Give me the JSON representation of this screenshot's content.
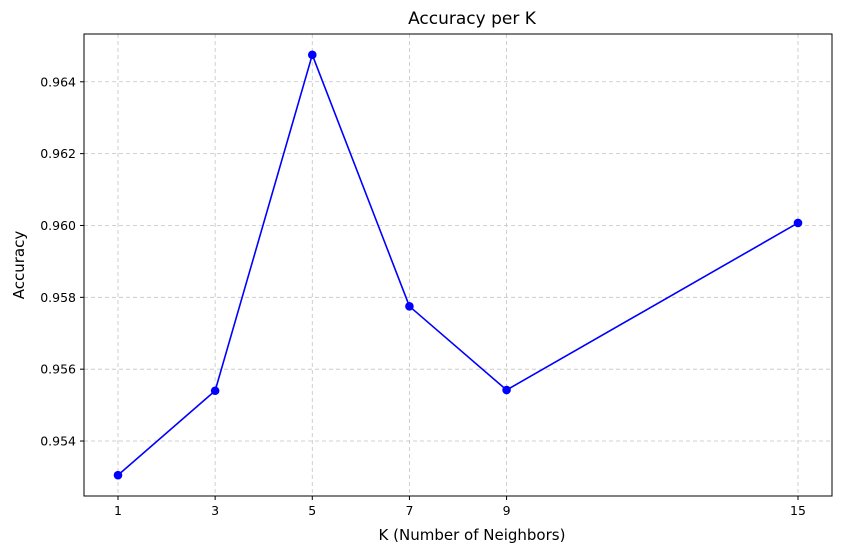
{
  "chart_data": {
    "type": "line",
    "title": "Accuracy per K",
    "xlabel": "K (Number of Neighbors)",
    "ylabel": "Accuracy",
    "x": [
      1,
      3,
      5,
      7,
      9,
      15
    ],
    "series": [
      {
        "values": [
          0.95305,
          0.9554,
          0.96475,
          0.95775,
          0.95542,
          0.96007
        ],
        "color": "#0000ff",
        "marker": "circle"
      }
    ],
    "xticks": [
      "1",
      "3",
      "5",
      "7",
      "9",
      "15"
    ],
    "yticks": [
      "0.954",
      "0.956",
      "0.958",
      "0.960",
      "0.962",
      "0.964"
    ],
    "xlim": [
      0.3,
      15.7
    ],
    "ylim": [
      0.95247,
      0.96533
    ],
    "grid": true,
    "grid_style": "dashed"
  }
}
